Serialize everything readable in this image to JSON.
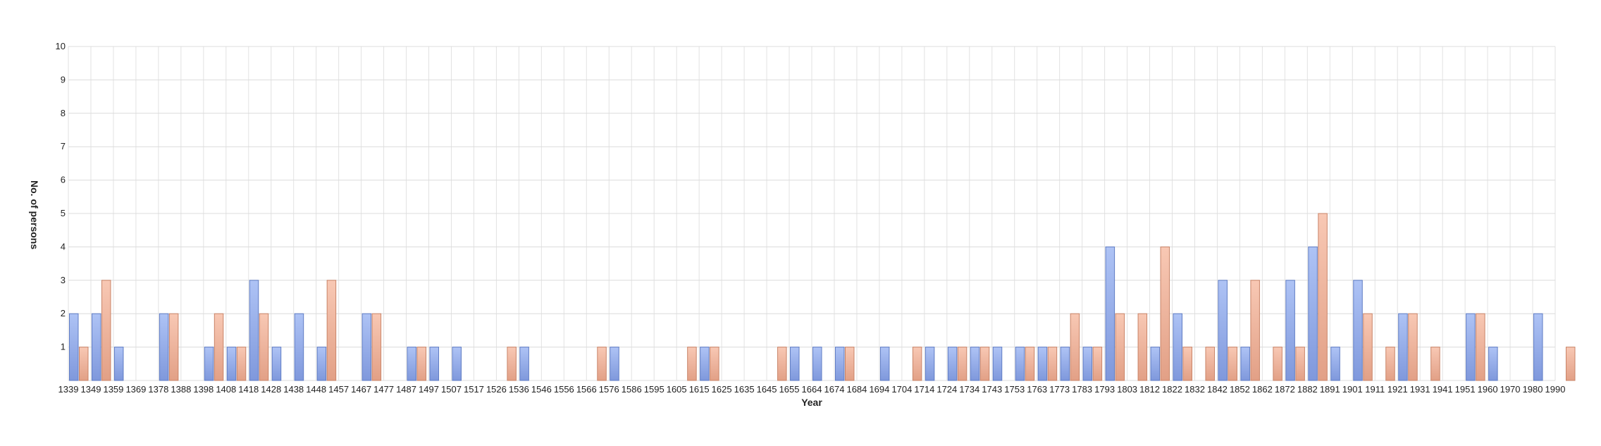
{
  "chart_data": {
    "type": "bar",
    "xlabel": "Year",
    "ylabel": "No. of persons",
    "ylim": [
      0,
      10
    ],
    "yticks": [
      1,
      2,
      3,
      4,
      5,
      6,
      7,
      8,
      9,
      10
    ],
    "grid": true,
    "categories": [
      "1339",
      "1349",
      "1359",
      "1369",
      "1378",
      "1388",
      "1398",
      "1408",
      "1418",
      "1428",
      "1438",
      "1448",
      "1457",
      "1467",
      "1477",
      "1487",
      "1497",
      "1507",
      "1517",
      "1526",
      "1536",
      "1546",
      "1556",
      "1566",
      "1576",
      "1586",
      "1595",
      "1605",
      "1615",
      "1625",
      "1635",
      "1645",
      "1655",
      "1664",
      "1674",
      "1684",
      "1694",
      "1704",
      "1714",
      "1724",
      "1734",
      "1743",
      "1753",
      "1763",
      "1773",
      "1783",
      "1793",
      "1803",
      "1812",
      "1822",
      "1832",
      "1842",
      "1852",
      "1862",
      "1872",
      "1882",
      "1891",
      "1901",
      "1911",
      "1921",
      "1931",
      "1941",
      "1951",
      "1960",
      "1970",
      "1980",
      "1990"
    ],
    "series": [
      {
        "color": "#8aa6ea",
        "values": [
          2,
          2,
          1,
          0,
          2,
          0,
          1,
          1,
          3,
          1,
          2,
          1,
          0,
          2,
          0,
          1,
          1,
          1,
          0,
          0,
          1,
          0,
          0,
          0,
          1,
          0,
          0,
          0,
          1,
          0,
          0,
          0,
          1,
          1,
          1,
          0,
          1,
          0,
          1,
          1,
          1,
          1,
          1,
          1,
          1,
          1,
          4,
          0,
          1,
          2,
          0,
          3,
          1,
          0,
          3,
          4,
          1,
          3,
          0,
          2,
          0,
          0,
          2,
          1,
          0,
          2,
          0
        ]
      },
      {
        "color": "#eeaa92",
        "values": [
          1,
          3,
          0,
          0,
          2,
          0,
          2,
          1,
          2,
          0,
          0,
          3,
          0,
          2,
          0,
          1,
          0,
          0,
          0,
          1,
          0,
          0,
          0,
          1,
          0,
          0,
          0,
          1,
          1,
          0,
          0,
          1,
          0,
          0,
          1,
          0,
          0,
          1,
          0,
          1,
          1,
          0,
          1,
          1,
          2,
          1,
          2,
          2,
          4,
          1,
          1,
          1,
          3,
          1,
          1,
          5,
          0,
          2,
          1,
          2,
          1,
          0,
          2,
          0,
          0,
          0,
          1
        ]
      }
    ]
  }
}
